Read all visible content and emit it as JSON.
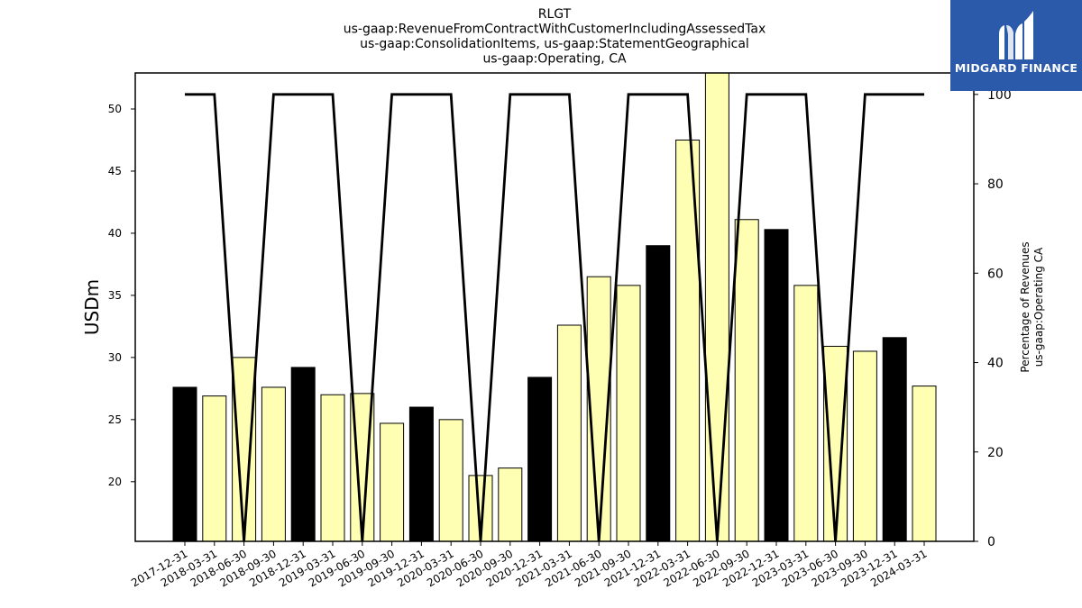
{
  "chart_data": {
    "type": "bar",
    "title_lines": [
      "RLGT",
      "us-gaap:RevenueFromContractWithCustomerIncludingAssessedTax",
      "us-gaap:ConsolidationItems, us-gaap:StatementGeographical",
      "us-gaap:Operating, CA"
    ],
    "ylabel": "USDm",
    "y2label_lines": [
      "Percentage of Revenues",
      "us-gaap:Operating CA"
    ],
    "ylim": [
      15.2,
      52.9
    ],
    "y2lim": [
      0,
      104.8
    ],
    "yticks": [
      20,
      25,
      30,
      35,
      40,
      45,
      50
    ],
    "y2ticks": [
      0,
      20,
      40,
      60,
      80,
      100
    ],
    "categories": [
      "2017-12-31",
      "2018-03-31",
      "2018-06-30",
      "2018-09-30",
      "2018-12-31",
      "2019-03-31",
      "2019-06-30",
      "2019-09-30",
      "2019-12-31",
      "2020-03-31",
      "2020-06-30",
      "2020-09-30",
      "2020-12-31",
      "2021-03-31",
      "2021-06-30",
      "2021-09-30",
      "2021-12-31",
      "2022-03-31",
      "2022-06-30",
      "2022-09-30",
      "2022-12-31",
      "2023-03-31",
      "2023-06-30",
      "2023-09-30",
      "2023-12-31",
      "2024-03-31"
    ],
    "series": [
      {
        "type": "bar",
        "values": [
          27.6,
          26.9,
          30.0,
          27.6,
          29.2,
          27.0,
          27.1,
          24.7,
          26.0,
          25.0,
          20.5,
          21.1,
          28.4,
          32.6,
          36.5,
          35.8,
          39.0,
          47.5,
          52.9,
          41.1,
          40.3,
          35.8,
          30.9,
          30.5,
          31.6,
          27.7
        ],
        "colors": [
          "#000000",
          "#ffffb3",
          "#ffffb3",
          "#ffffb3",
          "#000000",
          "#ffffb3",
          "#ffffb3",
          "#ffffb3",
          "#000000",
          "#ffffb3",
          "#ffffb3",
          "#ffffb3",
          "#000000",
          "#ffffb3",
          "#ffffb3",
          "#ffffb3",
          "#000000",
          "#ffffb3",
          "#ffffb3",
          "#ffffb3",
          "#000000",
          "#ffffb3",
          "#ffffb3",
          "#ffffb3",
          "#000000",
          "#ffffb3"
        ]
      },
      {
        "type": "line",
        "axis": "right",
        "color": "#000000",
        "values": [
          100,
          100,
          0,
          100,
          100,
          100,
          0,
          100,
          100,
          100,
          0,
          100,
          100,
          100,
          0,
          100,
          100,
          100,
          0,
          100,
          100,
          100,
          0,
          100,
          100,
          100
        ]
      }
    ],
    "grid": false
  },
  "logo": {
    "text": "MIDGARD FINANCE",
    "icon": "midgard-m-logo-icon",
    "background": "#2b5aaa"
  }
}
